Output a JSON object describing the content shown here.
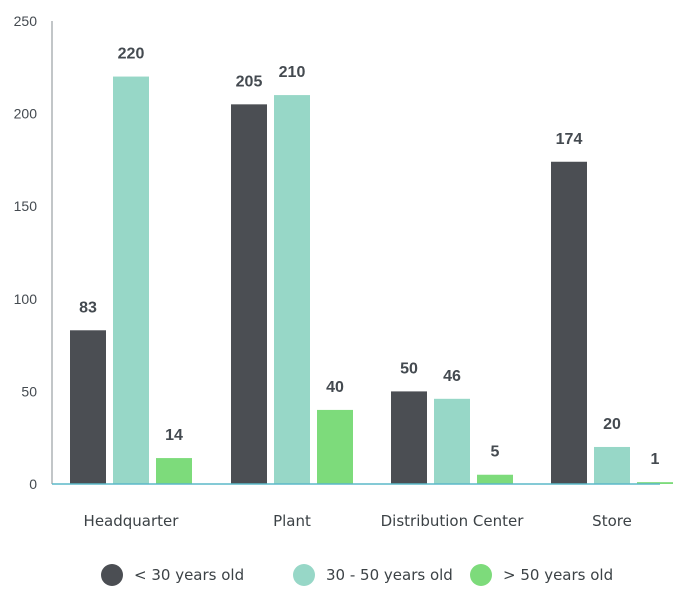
{
  "chart_data": {
    "type": "bar",
    "categories": [
      "Headquarter",
      "Plant",
      "Distribution Center",
      "Store"
    ],
    "series": [
      {
        "name": "< 30 years old",
        "color": "#4b4e53",
        "values": [
          83,
          205,
          50,
          174
        ]
      },
      {
        "name": "30 - 50 years old",
        "color": "#97d7c7",
        "values": [
          220,
          210,
          46,
          20
        ]
      },
      {
        "name": "> 50 years old",
        "color": "#7ddb7b",
        "values": [
          14,
          40,
          5,
          1
        ]
      }
    ],
    "yticks": [
      0,
      50,
      100,
      150,
      200,
      250
    ],
    "ylim": [
      0,
      250
    ],
    "legend_position": "bottom",
    "grid": false,
    "axis_color": "#5bb8c8"
  }
}
